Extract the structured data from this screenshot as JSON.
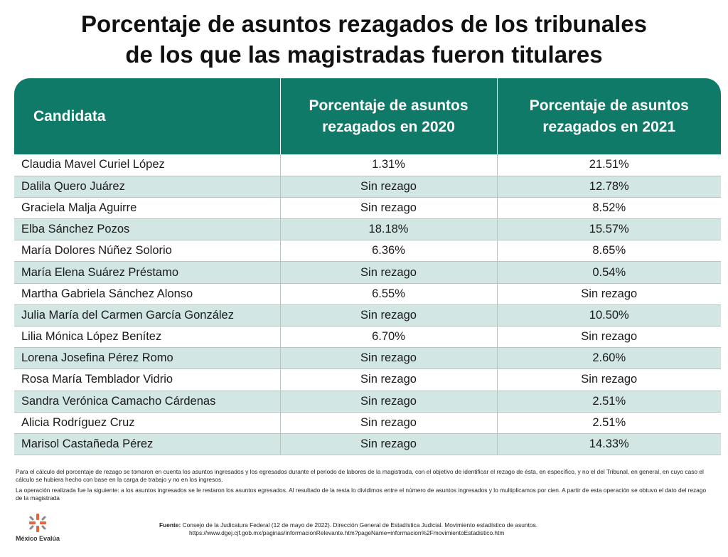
{
  "title": {
    "line1": "Porcentaje de asuntos rezagados de los tribunales",
    "line2": "de los que las magistradas fueron titulares"
  },
  "table": {
    "headers": [
      "Candidata",
      "Porcentaje de asuntos rezagados en 2020",
      "Porcentaje de asuntos rezagados en 2021"
    ],
    "rows": [
      [
        "Claudia Mavel Curiel López",
        "1.31%",
        "21.51%"
      ],
      [
        "Dalila Quero Juárez",
        "Sin rezago",
        "12.78%"
      ],
      [
        "Graciela Malja Aguirre",
        "Sin rezago",
        "8.52%"
      ],
      [
        "Elba Sánchez Pozos",
        "18.18%",
        "15.57%"
      ],
      [
        "María Dolores Núñez Solorio",
        "6.36%",
        "8.65%"
      ],
      [
        "María Elena Suárez Préstamo",
        "Sin rezago",
        "0.54%"
      ],
      [
        "Martha Gabriela Sánchez Alonso",
        "6.55%",
        "Sin rezago"
      ],
      [
        "Julia María del Carmen García González",
        "Sin rezago",
        "10.50%"
      ],
      [
        "Lilia Mónica López Benítez",
        "6.70%",
        "Sin rezago"
      ],
      [
        "Lorena Josefina Pérez Romo",
        "Sin rezago",
        "2.60%"
      ],
      [
        "Rosa María Temblador Vidrio",
        "Sin rezago",
        "Sin rezago"
      ],
      [
        "Sandra Verónica Camacho Cárdenas",
        "Sin rezago",
        "2.51%"
      ],
      [
        "Alicia Rodríguez Cruz",
        "Sin rezago",
        "2.51%"
      ],
      [
        "Marisol Castañeda Pérez",
        "Sin rezago",
        "14.33%"
      ]
    ]
  },
  "notes": {
    "p1": "Para el cálculo del porcentaje de rezago se tomaron en cuenta los asuntos ingresados y los egresados durante el periodo de labores de la magistrada, con el objetivo de identificar el rezago de ésta, en específico, y no el del Tribunal, en general, en cuyo caso el cálculo se hubiera hecho con base en la carga de trabajo y no en los ingresos.",
    "p2": "La operación realizada fue la siguiente: a los asuntos ingresados se le restaron los asuntos egresados. Al resultado de la resta lo dividimos entre el número de asuntos ingresados y lo multiplicamos por cien. A partir de esta operación se obtuvo el dato del rezago de la magistrada"
  },
  "source": {
    "label": "Fuente:",
    "text": "Consejo de la Judicatura Federal (12 de mayo de 2022). Dirección General de Estadística Judicial. Movimiento estadístico de asuntos.",
    "url": "https://www.dgej.cjf.gob.mx/paginas/informacionRelevante.htm?pageName=informacion%2FmovimientoEstadistico.htm"
  },
  "logo": {
    "text": "México Evalúa",
    "icon": "mexico-evalua-logo-icon",
    "colors": {
      "orange": "#e8643c",
      "gray": "#8a8a8a"
    }
  },
  "colors": {
    "header_bg": "#0f7a67",
    "row_alt_bg": "#d2e7e4"
  }
}
